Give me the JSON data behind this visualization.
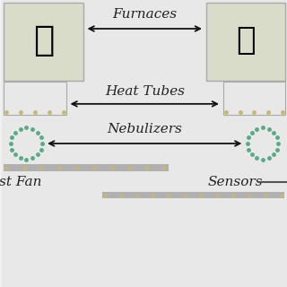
{
  "bg_color": "#e8e8e8",
  "furnace_box_color": "#d8dcc8",
  "furnace_box_border": "#aaaaaa",
  "tube_color": "#b0b0b0",
  "tube_dot_color": "#c8b870",
  "nebulizer_color": "#5aaa88",
  "arrow_color": "#111111",
  "label_furnaces": "Furnaces",
  "label_heat_tubes": "Heat Tubes",
  "label_nebulizers": "Nebulizers",
  "label_exhaust_fan": "st Fan",
  "label_sensors": "Sensors",
  "font_size_labels": 11,
  "fig_bg": "#f0f0f0"
}
